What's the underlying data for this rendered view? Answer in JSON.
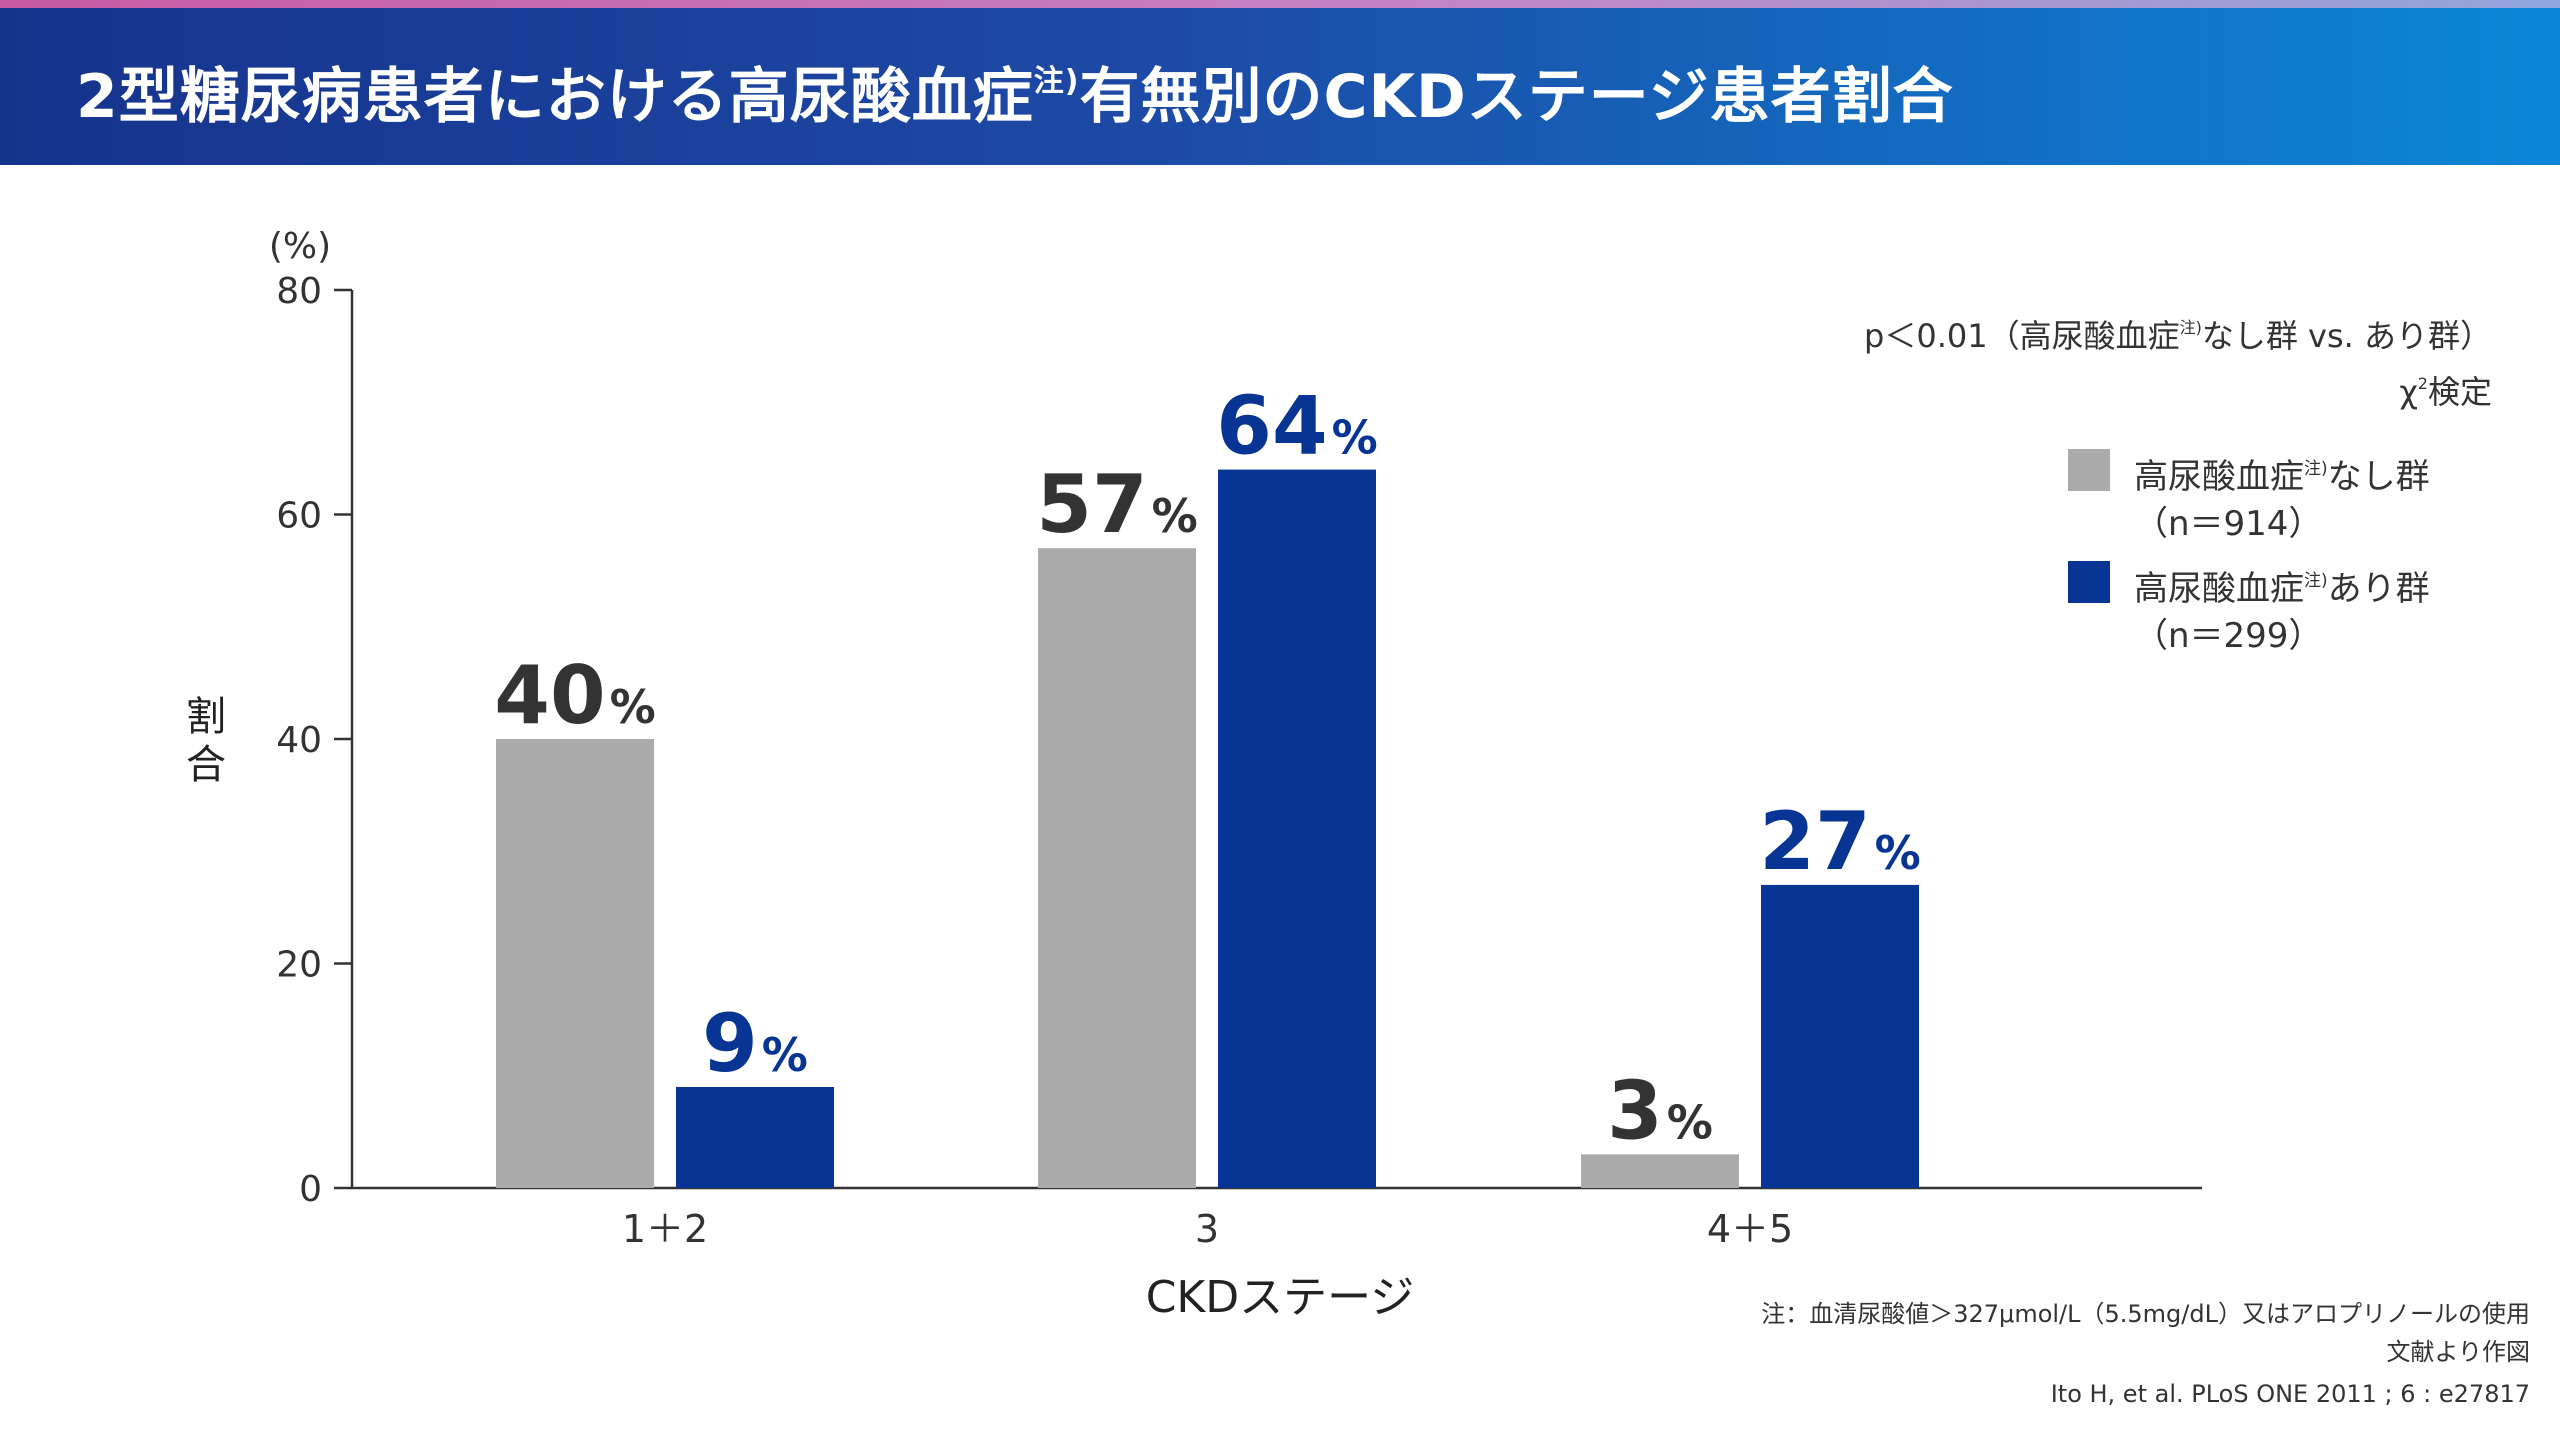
{
  "header": {
    "title_pre": "2型糖尿病患者における高尿酸血症",
    "title_sup": "注)",
    "title_post": "有無別のCKDステージ患者割合"
  },
  "colors": {
    "header_start": "#16338c",
    "header_end": "#0b86d6",
    "series_none": "#ababab",
    "series_with": "#083494",
    "label_none": "#333333",
    "label_with": "#083494"
  },
  "stat_note": {
    "line1_pre": "p＜0.01（高尿酸血症",
    "line1_sup": "注)",
    "line1_post": "なし群 vs. あり群）",
    "line2_pre": "χ",
    "line2_sup": "2",
    "line2_post": "検定"
  },
  "legend": [
    {
      "name_pre": "高尿酸血症",
      "name_sup": "注)",
      "name_post": "なし群",
      "n": "（n＝914）"
    },
    {
      "name_pre": "高尿酸血症",
      "name_sup": "注)",
      "name_post": "あり群",
      "n": "（n＝299）"
    }
  ],
  "footnote": {
    "line1": "注：血清尿酸値＞327μmol/L（5.5mg/dL）又はアロプリノールの使用",
    "line2": "文献より作図"
  },
  "citation": "Ito H, et al. PLoS ONE 2011 ; 6 : e27817",
  "chart_data": {
    "type": "bar",
    "categories": [
      "1＋2",
      "3",
      "4＋5"
    ],
    "series": [
      {
        "name": "高尿酸血症注)なし群",
        "values": [
          40,
          57,
          3
        ],
        "labels": [
          "40",
          "57",
          "3"
        ]
      },
      {
        "name": "高尿酸血症注)あり群",
        "values": [
          9,
          64,
          27
        ],
        "labels": [
          "9",
          "64",
          "27"
        ]
      }
    ],
    "value_suffix": "%",
    "xlabel": "CKDステージ",
    "ylabel": "割合",
    "y_unit": "(%)",
    "ylim": [
      0,
      80
    ],
    "yticks": [
      0,
      20,
      40,
      60,
      80
    ],
    "grid": false,
    "legend_position": "right"
  }
}
